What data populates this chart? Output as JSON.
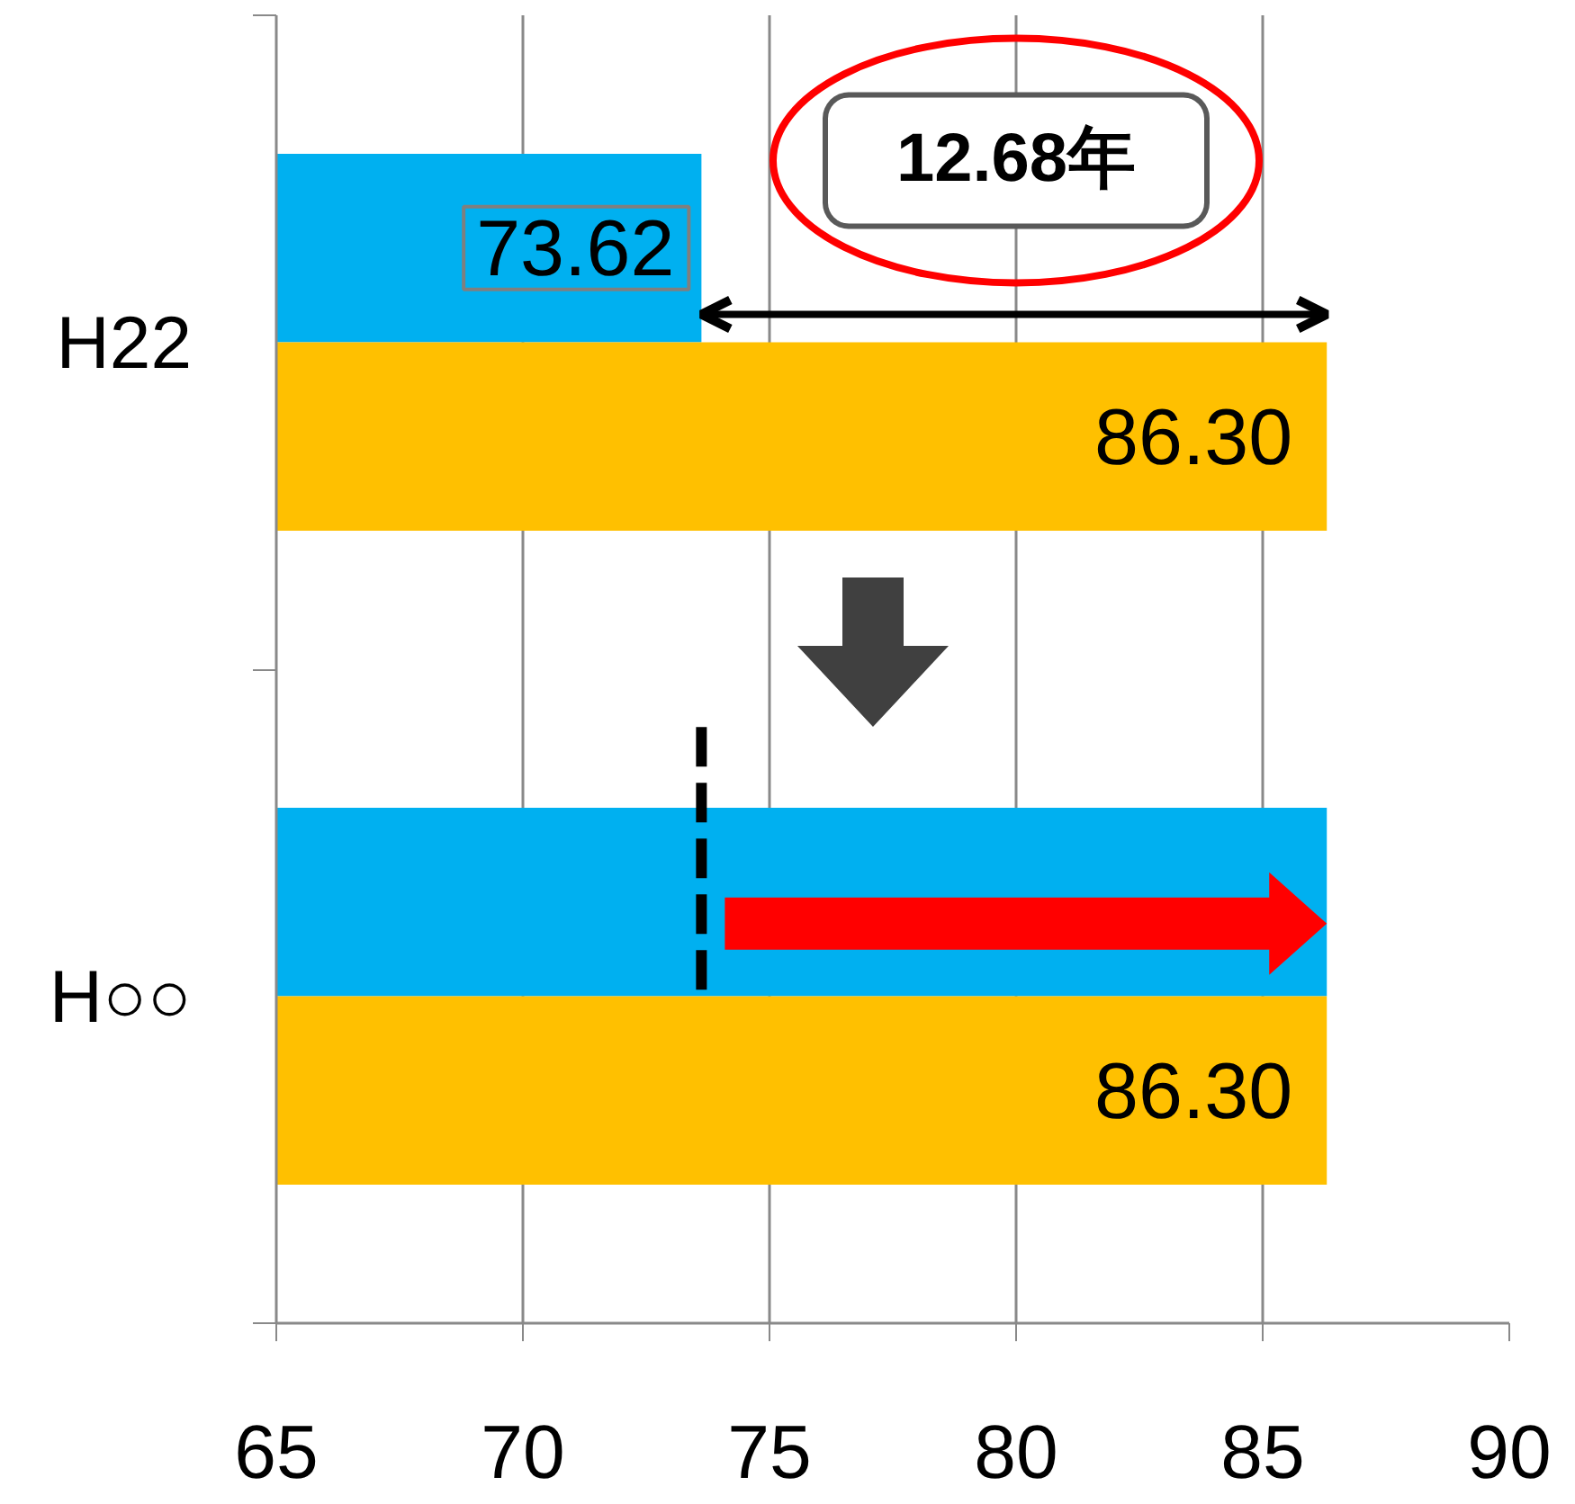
{
  "chart_data": {
    "type": "bar",
    "orientation": "horizontal",
    "categories": [
      "H22",
      "H○○"
    ],
    "series": [
      {
        "color": "#00b0f0",
        "values": [
          73.62,
          86.3
        ],
        "value_labels": [
          "73.62",
          null
        ]
      },
      {
        "color": "#ffc000",
        "values": [
          86.3,
          86.3
        ],
        "value_labels": [
          "86.30",
          "86.30"
        ]
      }
    ],
    "xlim": [
      65,
      90
    ],
    "xticks": [
      65,
      70,
      75,
      80,
      85,
      90
    ],
    "grid": "x",
    "annotations": [
      {
        "text": "12.68年",
        "x": 80,
        "y": "H22"
      }
    ],
    "ref_lines": [
      {
        "axis": "x",
        "value": 73.62,
        "color": "#000000",
        "line_style": "dashed"
      }
    ]
  }
}
